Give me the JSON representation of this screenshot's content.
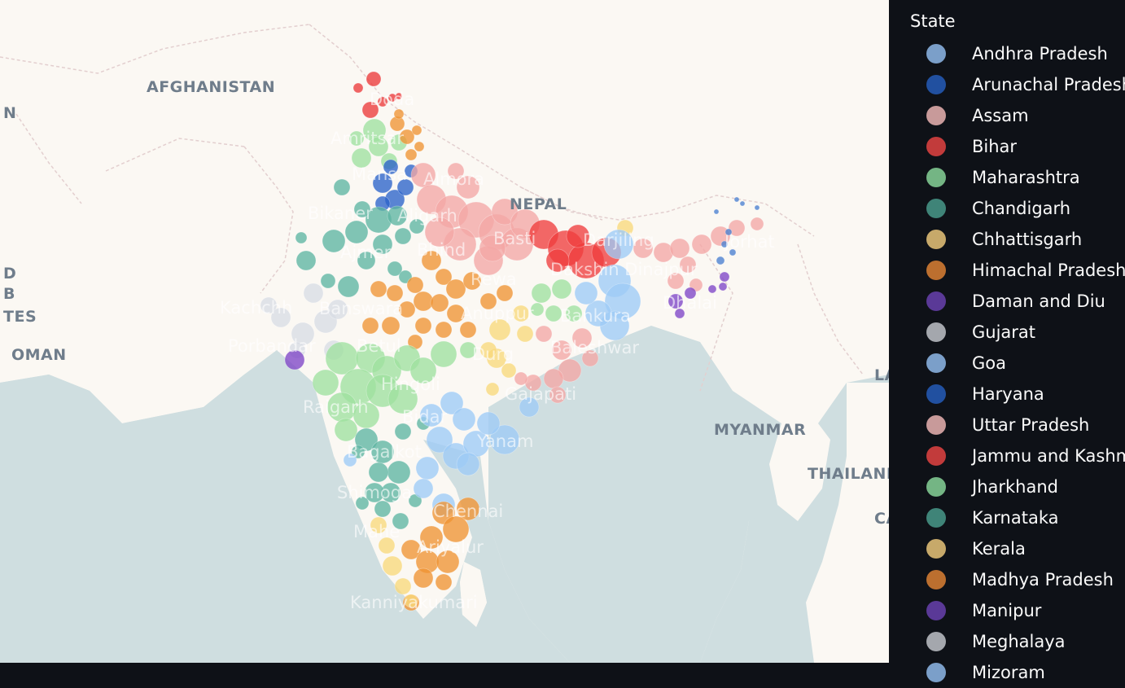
{
  "map": {
    "country_labels": [
      {
        "id": "afghanistan",
        "text": "AFGHANISTAN"
      },
      {
        "id": "nepal",
        "text": "NEPAL"
      },
      {
        "id": "myanmar",
        "text": "MYANMAR"
      },
      {
        "id": "thailand",
        "text": "THAILAND"
      },
      {
        "id": "oman",
        "text": "OMAN"
      },
      {
        "id": "iran-partial",
        "text": "N"
      },
      {
        "id": "uae-partial",
        "text": "D"
      },
      {
        "id": "uae-partial-2",
        "text": "B"
      },
      {
        "id": "uae-partial-3",
        "text": "TES"
      },
      {
        "id": "laos-partial",
        "text": "LA"
      },
      {
        "id": "cambodia-partial",
        "text": "CA"
      }
    ],
    "city_labels": [
      {
        "id": "doda",
        "text": "Doda"
      },
      {
        "id": "amritsar",
        "text": "Amritsar"
      },
      {
        "id": "mansa",
        "text": "Mansa"
      },
      {
        "id": "almora",
        "text": "Almora"
      },
      {
        "id": "bikaner",
        "text": "Bikaner"
      },
      {
        "id": "aligarh",
        "text": "Aligarh"
      },
      {
        "id": "basti",
        "text": "Basti"
      },
      {
        "id": "darjiling",
        "text": "Darjiling"
      },
      {
        "id": "ajmer",
        "text": "Ajmer"
      },
      {
        "id": "bhind",
        "text": "Bhind"
      },
      {
        "id": "dakshin-dinajpur",
        "text": "Dakshin Dinajpur"
      },
      {
        "id": "jorhat",
        "text": "Jorhat"
      },
      {
        "id": "rewa",
        "text": "Rewa"
      },
      {
        "id": "kachchh",
        "text": "Kachchh"
      },
      {
        "id": "banswara",
        "text": "Banswara"
      },
      {
        "id": "anuppur",
        "text": "Anuppur"
      },
      {
        "id": "bankura",
        "text": "Bankura"
      },
      {
        "id": "dhalai",
        "text": "Dhalai"
      },
      {
        "id": "porbandar",
        "text": "Porbandar"
      },
      {
        "id": "betul",
        "text": "Betul"
      },
      {
        "id": "durg",
        "text": "Durg"
      },
      {
        "id": "baleshwar",
        "text": "Baleshwar"
      },
      {
        "id": "hingoli",
        "text": "Hingoli"
      },
      {
        "id": "gajapati",
        "text": "Gajapati"
      },
      {
        "id": "raigarh",
        "text": "Raigarh"
      },
      {
        "id": "bidar",
        "text": "Bidar"
      },
      {
        "id": "yanam",
        "text": "Yanam"
      },
      {
        "id": "bagalkot",
        "text": "Bagalkot"
      },
      {
        "id": "shimoga",
        "text": "Shimoga"
      },
      {
        "id": "chennai",
        "text": "Chennai"
      },
      {
        "id": "mahe",
        "text": "Mahe"
      },
      {
        "id": "ariyalur",
        "text": "Ariyalur"
      },
      {
        "id": "kanniyakumari",
        "text": "Kanniyakumari"
      }
    ]
  },
  "legend": {
    "title": "State",
    "items": [
      {
        "label": "Andhra Pradesh",
        "color": "#7b9fc9"
      },
      {
        "label": "Arunachal Pradesh",
        "color": "#2150a0"
      },
      {
        "label": "Assam",
        "color": "#c89a9a"
      },
      {
        "label": "Bihar",
        "color": "#c23b3b"
      },
      {
        "label": "Maharashtra",
        "color": "#74b584"
      },
      {
        "label": "Chandigarh",
        "color": "#3f8478"
      },
      {
        "label": "Chhattisgarh",
        "color": "#c7a96a"
      },
      {
        "label": "Himachal Pradesh",
        "color": "#bc6f2f"
      },
      {
        "label": "Daman and Diu",
        "color": "#5a3997"
      },
      {
        "label": "Gujarat",
        "color": "#a4a7ad"
      },
      {
        "label": "Goa",
        "color": "#7b9fc9"
      },
      {
        "label": "Haryana",
        "color": "#2150a0"
      },
      {
        "label": "Uttar Pradesh",
        "color": "#c89a9a"
      },
      {
        "label": "Jammu and Kashmir",
        "color": "#c23b3b"
      },
      {
        "label": "Jharkhand",
        "color": "#74b584"
      },
      {
        "label": "Karnataka",
        "color": "#3f8478"
      },
      {
        "label": "Kerala",
        "color": "#c7a96a"
      },
      {
        "label": "Madhya Pradesh",
        "color": "#bc6f2f"
      },
      {
        "label": "Manipur",
        "color": "#5a3997"
      },
      {
        "label": "Meghalaya",
        "color": "#a4a7ad"
      },
      {
        "label": "Mizoram",
        "color": "#7b9fc9"
      }
    ]
  },
  "colors": {
    "land": "#fbf8f3",
    "sea": "#cfdee0",
    "border": "#e3cfcf",
    "legend_bg": "#0e1117",
    "bubble_colors": {
      "jk": "#ec3a3a",
      "punjab": "#9fe09f",
      "hp": "#ef9433",
      "haryana": "#2c63c9",
      "up": "#f3a7a5",
      "bihar": "#ef3d3d",
      "rajasthan": "#5eb5a2",
      "gujarat": "#d9dde4",
      "mp": "#ef9433",
      "wb": "#9ecbf6",
      "assam": "#f3a7a5",
      "ne": "#4a7fd0",
      "manipur": "#7f45c7",
      "maharashtra": "#9fe09f",
      "karnataka": "#5eb5a2",
      "andhra": "#9ecbf6",
      "chhattisgarh": "#f8d97b",
      "orissa": "#f3a7a5",
      "tamilnadu": "#ef9433",
      "kerala": "#f8d97b"
    }
  }
}
